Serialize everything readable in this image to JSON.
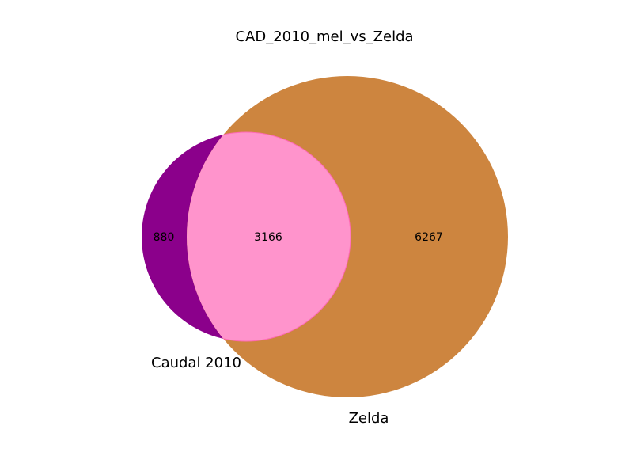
{
  "title": "CAD_2010_mel_vs_Zelda",
  "colors": {
    "set_a": "#8b008b",
    "set_b": "#cd853f",
    "overlap": "#ff94cc",
    "overlap_edge": "#ff69b4"
  },
  "sets": [
    {
      "name": "Caudal 2010",
      "only_count": "880"
    },
    {
      "name": "Zelda",
      "only_count": "6267"
    }
  ],
  "intersection_count": "3166"
}
